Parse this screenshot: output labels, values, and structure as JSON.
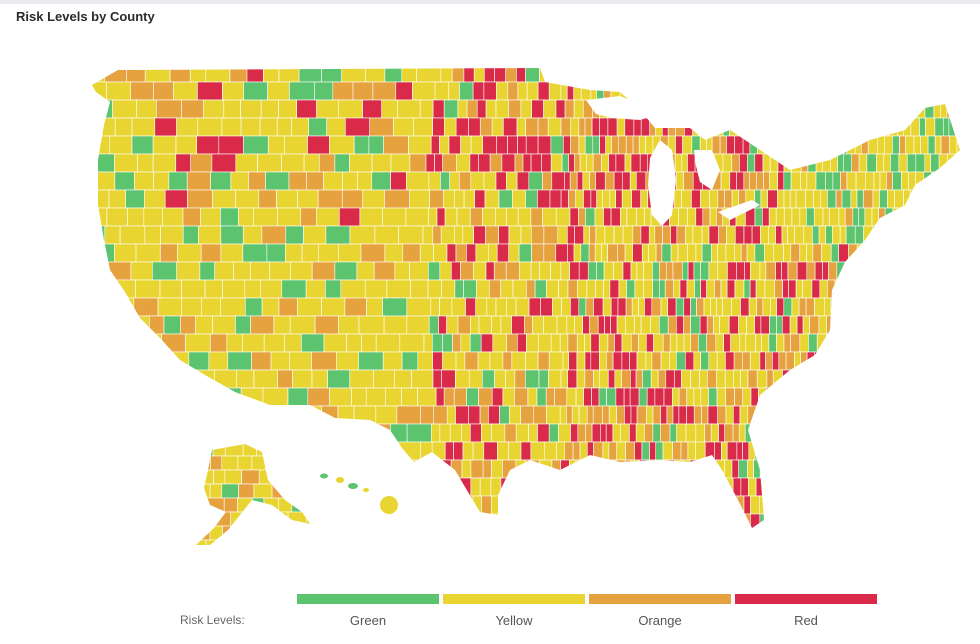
{
  "title": "Risk Levels by County",
  "legend": {
    "label": "Risk Levels:",
    "items": [
      {
        "name": "Green",
        "color": "#5cc36e"
      },
      {
        "name": "Yellow",
        "color": "#e9d532"
      },
      {
        "name": "Orange",
        "color": "#e5a23f"
      },
      {
        "name": "Red",
        "color": "#d92a4a"
      }
    ]
  },
  "colors": {
    "green": "#5cc36e",
    "yellow": "#e9d532",
    "orange": "#e5a23f",
    "red": "#d92a4a",
    "border": "#ffffff"
  },
  "map": {
    "subject": "United States counties choropleth",
    "insets": [
      "Alaska",
      "Hawaii"
    ]
  }
}
